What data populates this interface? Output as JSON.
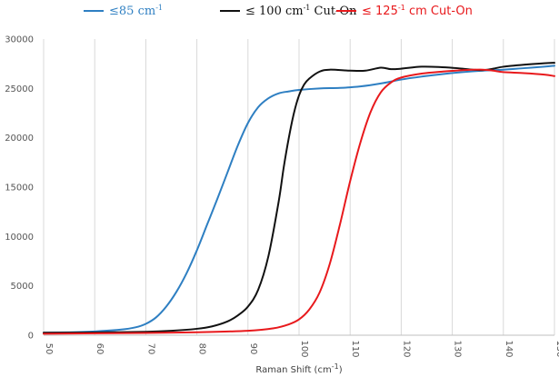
{
  "chart_data": {
    "type": "line",
    "title": "",
    "xlabel": "Raman Shift (cm",
    "xlabel_sup": "-1",
    "xlabel_close": ")",
    "ylabel": "",
    "xlim": [
      50,
      150
    ],
    "ylim": [
      0,
      30000
    ],
    "x_ticks": [
      50,
      60,
      70,
      80,
      90,
      100,
      110,
      120,
      130,
      140,
      150
    ],
    "y_ticks": [
      0,
      5000,
      10000,
      15000,
      20000,
      25000,
      30000
    ],
    "grid": "vertical",
    "legend_position": "top",
    "series": [
      {
        "color": "#2e7fc2",
        "legend_text": "≤85 cm",
        "legend_sup": "-1",
        "legend_suffix": "",
        "points": [
          [
            50,
            250
          ],
          [
            55,
            290
          ],
          [
            60,
            380
          ],
          [
            65,
            560
          ],
          [
            68,
            800
          ],
          [
            70,
            1150
          ],
          [
            72,
            1800
          ],
          [
            74,
            2900
          ],
          [
            76,
            4400
          ],
          [
            78,
            6300
          ],
          [
            80,
            8600
          ],
          [
            82,
            11200
          ],
          [
            84,
            13800
          ],
          [
            86,
            16500
          ],
          [
            88,
            19200
          ],
          [
            90,
            21500
          ],
          [
            92,
            23100
          ],
          [
            94,
            24000
          ],
          [
            96,
            24500
          ],
          [
            98,
            24700
          ],
          [
            100,
            24850
          ],
          [
            104,
            25000
          ],
          [
            108,
            25050
          ],
          [
            112,
            25200
          ],
          [
            116,
            25500
          ],
          [
            120,
            25900
          ],
          [
            124,
            26200
          ],
          [
            128,
            26450
          ],
          [
            132,
            26650
          ],
          [
            136,
            26800
          ],
          [
            140,
            26900
          ],
          [
            144,
            27050
          ],
          [
            148,
            27200
          ],
          [
            150,
            27300
          ]
        ]
      },
      {
        "color": "#111111",
        "legend_text": "≤ 100 cm",
        "legend_sup": "-1",
        "legend_suffix": " Cut-On",
        "points": [
          [
            50,
            250
          ],
          [
            60,
            280
          ],
          [
            70,
            350
          ],
          [
            75,
            450
          ],
          [
            80,
            650
          ],
          [
            83,
            900
          ],
          [
            86,
            1400
          ],
          [
            88,
            2000
          ],
          [
            90,
            2900
          ],
          [
            92,
            4600
          ],
          [
            94,
            8000
          ],
          [
            96,
            13500
          ],
          [
            97,
            17000
          ],
          [
            98,
            20000
          ],
          [
            99,
            22500
          ],
          [
            100,
            24300
          ],
          [
            101,
            25400
          ],
          [
            102,
            26000
          ],
          [
            104,
            26700
          ],
          [
            106,
            26900
          ],
          [
            110,
            26800
          ],
          [
            113,
            26800
          ],
          [
            116,
            27100
          ],
          [
            118,
            26950
          ],
          [
            120,
            27000
          ],
          [
            124,
            27200
          ],
          [
            128,
            27150
          ],
          [
            131,
            27050
          ],
          [
            134,
            26900
          ],
          [
            136,
            26850
          ],
          [
            138,
            27000
          ],
          [
            140,
            27200
          ],
          [
            144,
            27400
          ],
          [
            148,
            27550
          ],
          [
            150,
            27600
          ]
        ]
      },
      {
        "color": "#e8191c",
        "legend_text": "≤ 125",
        "legend_sup": "-1",
        "legend_suffix": " cm Cut-On",
        "points": [
          [
            50,
            150
          ],
          [
            70,
            230
          ],
          [
            80,
            300
          ],
          [
            90,
            450
          ],
          [
            95,
            700
          ],
          [
            98,
            1100
          ],
          [
            100,
            1600
          ],
          [
            102,
            2600
          ],
          [
            104,
            4300
          ],
          [
            106,
            7200
          ],
          [
            108,
            11200
          ],
          [
            110,
            15600
          ],
          [
            112,
            19500
          ],
          [
            114,
            22600
          ],
          [
            116,
            24600
          ],
          [
            118,
            25600
          ],
          [
            120,
            26100
          ],
          [
            124,
            26500
          ],
          [
            128,
            26700
          ],
          [
            132,
            26850
          ],
          [
            136,
            26900
          ],
          [
            138,
            26800
          ],
          [
            140,
            26650
          ],
          [
            144,
            26550
          ],
          [
            148,
            26400
          ],
          [
            150,
            26250
          ]
        ]
      }
    ]
  }
}
